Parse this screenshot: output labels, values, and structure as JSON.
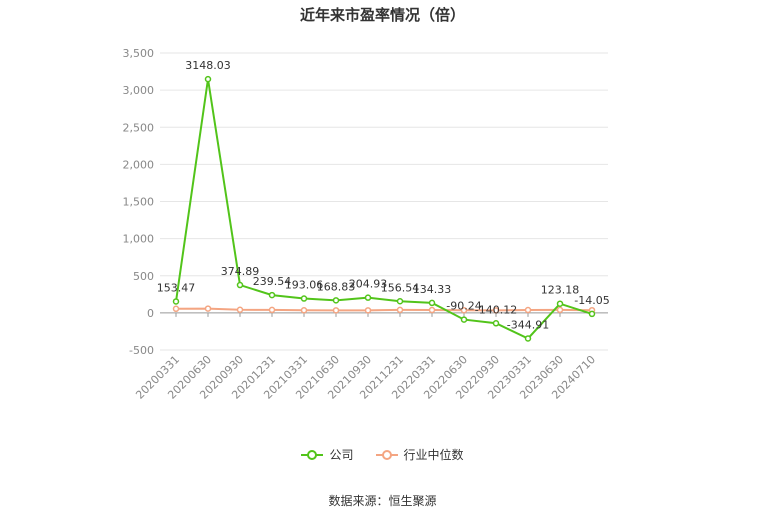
{
  "chart_data": {
    "type": "line",
    "title": "近年来市盈率情况（倍）",
    "categories": [
      "20200331",
      "20200630",
      "20200930",
      "20201231",
      "20210331",
      "20210630",
      "20210930",
      "20211231",
      "20220331",
      "20220630",
      "20220930",
      "20230331",
      "20230630",
      "20240710"
    ],
    "series": [
      {
        "name": "公司",
        "color": "#52c41a",
        "values": [
          153.47,
          3148.03,
          374.89,
          239.54,
          193.06,
          168.83,
          204.93,
          156.54,
          134.33,
          -90.24,
          -140.12,
          -344.91,
          123.18,
          -14.05
        ],
        "labels": [
          "153.47",
          "3148.03",
          "374.89",
          "239.54",
          "193.06",
          "168.83",
          "204.93",
          "156.54",
          "134.33",
          "-90.24",
          "-140.12",
          "-344.91",
          "123.18",
          "-14.05"
        ]
      },
      {
        "name": "行业中位数",
        "color": "#f4a582",
        "values": [
          55,
          58,
          42,
          40,
          35,
          34,
          34,
          40,
          38,
          36,
          34,
          38,
          40,
          36
        ]
      }
    ],
    "ylim": [
      -500,
      3500
    ],
    "yticks": [
      -500,
      0,
      500,
      1000,
      1500,
      2000,
      2500,
      3000,
      3500
    ],
    "ytick_labels": [
      "-500",
      "0",
      "500",
      "1,000",
      "1,500",
      "2,000",
      "2,500",
      "3,000",
      "3,500"
    ],
    "grid": true,
    "legend_position": "bottom"
  },
  "footer": {
    "source": "数据来源：恒生聚源"
  }
}
